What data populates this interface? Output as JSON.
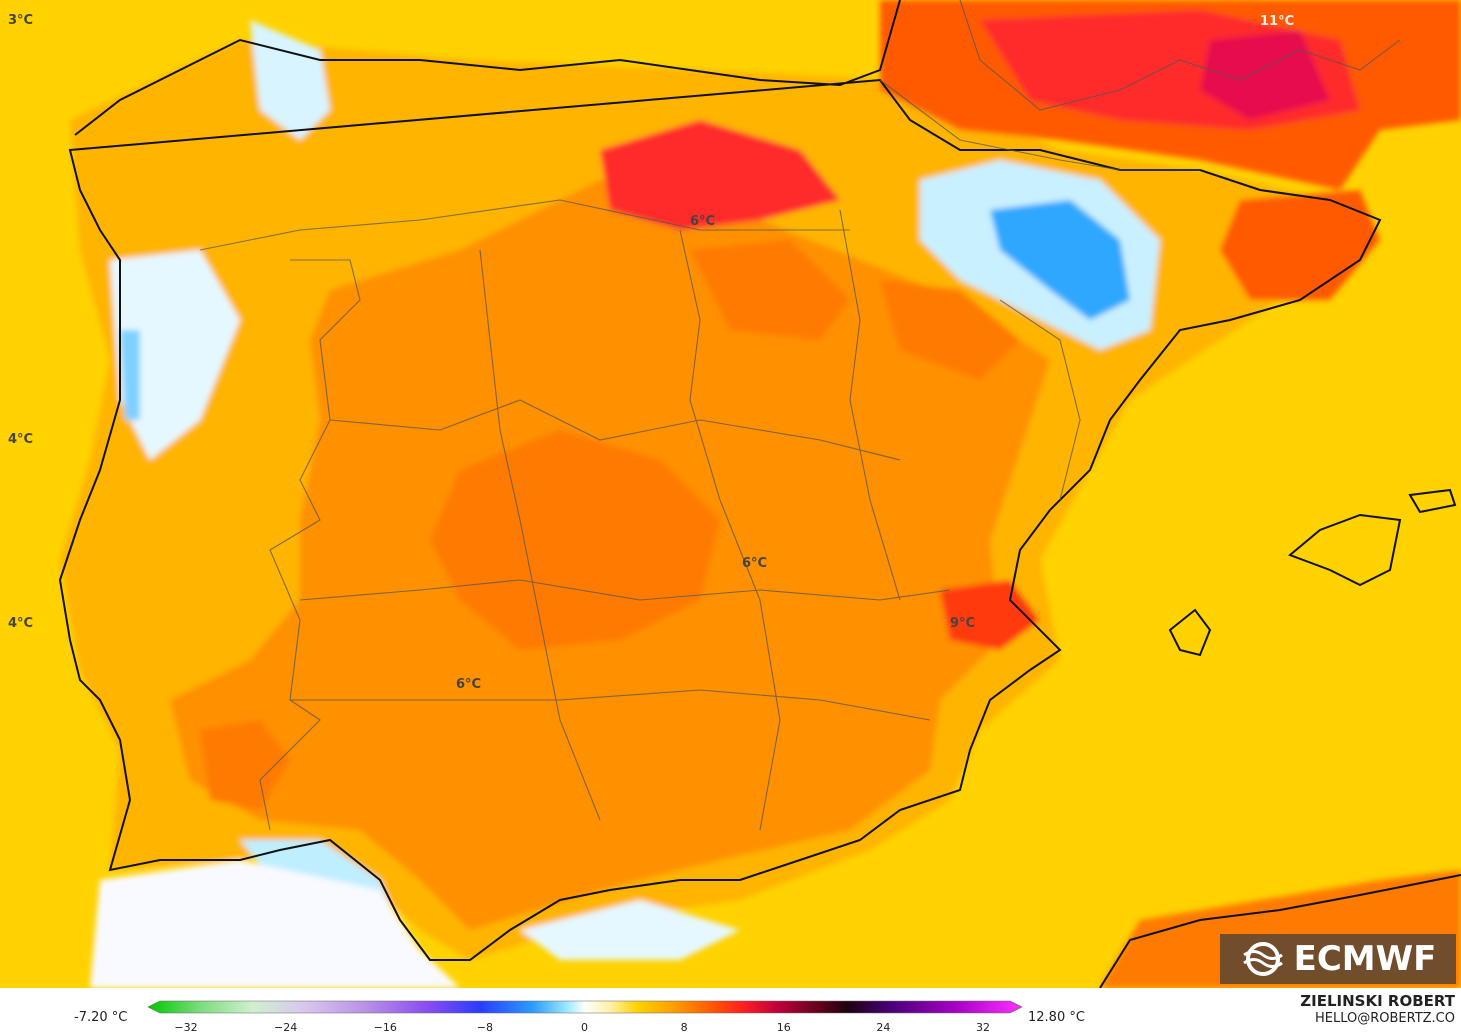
{
  "map": {
    "labels": {
      "top_left": "3°C",
      "top_right": "11°C",
      "west_1": "4°C",
      "west_2": "4°C",
      "north": "6°C",
      "center": "6°C",
      "valencia": "9°C",
      "south": "6°C"
    }
  },
  "legend": {
    "min_label": "-7.20 °C",
    "max_label": "12.80 °C",
    "ticks": [
      "−32",
      "−24",
      "−16",
      "−8",
      "0",
      "8",
      "16",
      "24",
      "32"
    ]
  },
  "credit": {
    "name": "ZIELINSKI ROBERT",
    "email": "HELLO@ROBERTZ.CO"
  },
  "logo": {
    "text": "ECMWF"
  },
  "colors": {
    "sea_yellow": "#ffd200",
    "orange_light": "#ffa500",
    "orange": "#ff7f00",
    "red_orange": "#ff4f00",
    "red": "#ff1e1e",
    "crimson": "#e6004d",
    "light_blue": "#bfeeff",
    "blue": "#2da7ff"
  }
}
